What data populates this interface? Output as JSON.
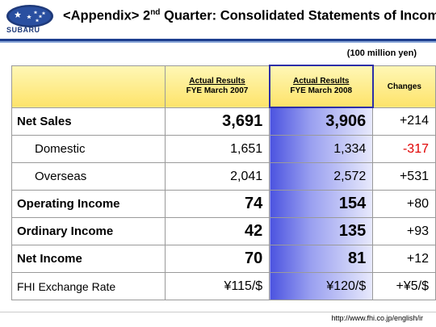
{
  "header": {
    "logo_text": "SUBARU",
    "title_prefix": "<Appendix> 2",
    "title_sup": "nd",
    "title_suffix": " Quarter: Consolidated Statements of Income"
  },
  "unit": "(100 million yen)",
  "table": {
    "columns": [
      {
        "line1": "Actual Results",
        "line2": "FYE March 2007"
      },
      {
        "line1": "Actual Results",
        "line2": "FYE March 2008"
      },
      {
        "line1": "Changes"
      }
    ],
    "rows": [
      {
        "label": "Net Sales",
        "fy2007": "3,691",
        "fy2008": "3,906",
        "change": "+214"
      },
      {
        "label": "Domestic",
        "fy2007": "1,651",
        "fy2008": "1,334",
        "change": "-317"
      },
      {
        "label": "Overseas",
        "fy2007": "2,041",
        "fy2008": "2,572",
        "change": "+531"
      },
      {
        "label": "Operating Income",
        "fy2007": "74",
        "fy2008": "154",
        "change": "+80"
      },
      {
        "label": "Ordinary Income",
        "fy2007": "42",
        "fy2008": "135",
        "change": "+93"
      },
      {
        "label": "Net Income",
        "fy2007": "70",
        "fy2008": "81",
        "change": "+12"
      },
      {
        "label": "FHI Exchange Rate",
        "fy2007": "¥115/$",
        "fy2008": "¥120/$",
        "change": "+¥5/$"
      }
    ]
  },
  "footer": {
    "url": "http://www.fhi.co.jp/english/ir"
  },
  "colors": {
    "brand_blue": "#1e3f8f",
    "header_yellow": "#fde36a",
    "negative": "#e00000"
  }
}
